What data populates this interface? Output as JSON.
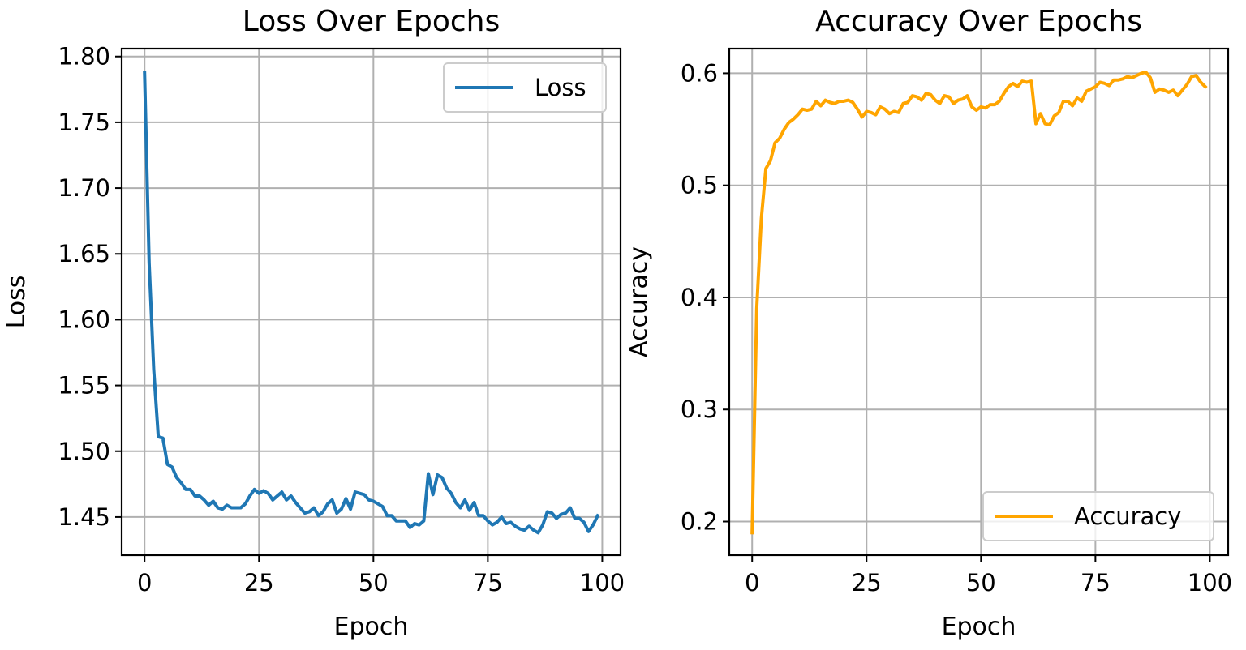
{
  "chart_data": [
    {
      "type": "line",
      "title": "Loss Over Epochs",
      "xlabel": "Epoch",
      "ylabel": "Loss",
      "xlim": [
        -5,
        104
      ],
      "ylim": [
        1.421,
        1.806
      ],
      "xticks": [
        0,
        25,
        50,
        75,
        100
      ],
      "xtick_labels": [
        "0",
        "25",
        "50",
        "75",
        "100"
      ],
      "yticks": [
        1.45,
        1.5,
        1.55,
        1.6,
        1.65,
        1.7,
        1.75,
        1.8
      ],
      "ytick_labels": [
        "1.45",
        "1.50",
        "1.55",
        "1.60",
        "1.65",
        "1.70",
        "1.75",
        "1.80"
      ],
      "grid": true,
      "legend": "upper right",
      "series": [
        {
          "name": "Loss",
          "color": "#1f77b4",
          "x": [
            0,
            1,
            2,
            3,
            4,
            5,
            6,
            7,
            8,
            9,
            10,
            11,
            12,
            13,
            14,
            15,
            16,
            17,
            18,
            19,
            20,
            21,
            22,
            23,
            24,
            25,
            26,
            27,
            28,
            29,
            30,
            31,
            32,
            33,
            34,
            35,
            36,
            37,
            38,
            39,
            40,
            41,
            42,
            43,
            44,
            45,
            46,
            47,
            48,
            49,
            50,
            51,
            52,
            53,
            54,
            55,
            56,
            57,
            58,
            59,
            60,
            61,
            62,
            63,
            64,
            65,
            66,
            67,
            68,
            69,
            70,
            71,
            72,
            73,
            74,
            75,
            76,
            77,
            78,
            79,
            80,
            81,
            82,
            83,
            84,
            85,
            86,
            87,
            88,
            89,
            90,
            91,
            92,
            93,
            94,
            95,
            96,
            97,
            98,
            99
          ],
          "values": [
            1.788,
            1.643,
            1.562,
            1.511,
            1.51,
            1.49,
            1.488,
            1.48,
            1.476,
            1.471,
            1.471,
            1.466,
            1.466,
            1.463,
            1.459,
            1.462,
            1.457,
            1.456,
            1.459,
            1.457,
            1.457,
            1.457,
            1.46,
            1.466,
            1.471,
            1.468,
            1.47,
            1.468,
            1.463,
            1.466,
            1.469,
            1.463,
            1.466,
            1.461,
            1.457,
            1.453,
            1.454,
            1.457,
            1.451,
            1.454,
            1.46,
            1.463,
            1.453,
            1.456,
            1.464,
            1.456,
            1.469,
            1.468,
            1.467,
            1.463,
            1.462,
            1.46,
            1.458,
            1.451,
            1.451,
            1.447,
            1.447,
            1.447,
            1.442,
            1.445,
            1.444,
            1.447,
            1.483,
            1.467,
            1.482,
            1.48,
            1.472,
            1.468,
            1.461,
            1.457,
            1.463,
            1.455,
            1.461,
            1.451,
            1.451,
            1.447,
            1.444,
            1.446,
            1.45,
            1.445,
            1.446,
            1.443,
            1.441,
            1.44,
            1.443,
            1.44,
            1.438,
            1.444,
            1.454,
            1.453,
            1.449,
            1.452,
            1.453,
            1.457,
            1.449,
            1.449,
            1.446,
            1.439,
            1.444,
            1.451
          ]
        }
      ]
    },
    {
      "type": "line",
      "title": "Accuracy Over Epochs",
      "xlabel": "Epoch",
      "ylabel": "Accuracy",
      "xlim": [
        -5,
        104
      ],
      "ylim": [
        0.17,
        0.622
      ],
      "xticks": [
        0,
        25,
        50,
        75,
        100
      ],
      "xtick_labels": [
        "0",
        "25",
        "50",
        "75",
        "100"
      ],
      "yticks": [
        0.2,
        0.3,
        0.4,
        0.5,
        0.6
      ],
      "ytick_labels": [
        "0.2",
        "0.3",
        "0.4",
        "0.5",
        "0.6"
      ],
      "grid": true,
      "legend": "lower right",
      "series": [
        {
          "name": "Accuracy",
          "color": "#ffa500",
          "x": [
            0,
            1,
            2,
            3,
            4,
            5,
            6,
            7,
            8,
            9,
            10,
            11,
            12,
            13,
            14,
            15,
            16,
            17,
            18,
            19,
            20,
            21,
            22,
            23,
            24,
            25,
            26,
            27,
            28,
            29,
            30,
            31,
            32,
            33,
            34,
            35,
            36,
            37,
            38,
            39,
            40,
            41,
            42,
            43,
            44,
            45,
            46,
            47,
            48,
            49,
            50,
            51,
            52,
            53,
            54,
            55,
            56,
            57,
            58,
            59,
            60,
            61,
            62,
            63,
            64,
            65,
            66,
            67,
            68,
            69,
            70,
            71,
            72,
            73,
            74,
            75,
            76,
            77,
            78,
            79,
            80,
            81,
            82,
            83,
            84,
            85,
            86,
            87,
            88,
            89,
            90,
            91,
            92,
            93,
            94,
            95,
            96,
            97,
            98,
            99
          ],
          "values": [
            0.19,
            0.39,
            0.47,
            0.515,
            0.522,
            0.538,
            0.542,
            0.55,
            0.556,
            0.559,
            0.563,
            0.568,
            0.567,
            0.568,
            0.575,
            0.571,
            0.576,
            0.574,
            0.573,
            0.575,
            0.575,
            0.576,
            0.574,
            0.568,
            0.561,
            0.566,
            0.565,
            0.563,
            0.57,
            0.568,
            0.564,
            0.566,
            0.565,
            0.573,
            0.574,
            0.58,
            0.579,
            0.576,
            0.582,
            0.581,
            0.576,
            0.573,
            0.58,
            0.579,
            0.573,
            0.576,
            0.577,
            0.58,
            0.57,
            0.567,
            0.57,
            0.569,
            0.572,
            0.572,
            0.575,
            0.582,
            0.588,
            0.591,
            0.588,
            0.593,
            0.592,
            0.593,
            0.555,
            0.564,
            0.555,
            0.554,
            0.562,
            0.565,
            0.575,
            0.575,
            0.571,
            0.578,
            0.575,
            0.584,
            0.586,
            0.588,
            0.592,
            0.591,
            0.589,
            0.594,
            0.594,
            0.595,
            0.597,
            0.596,
            0.598,
            0.6,
            0.601,
            0.596,
            0.583,
            0.586,
            0.585,
            0.583,
            0.585,
            0.58,
            0.585,
            0.59,
            0.597,
            0.598,
            0.592,
            0.588
          ]
        }
      ]
    }
  ]
}
